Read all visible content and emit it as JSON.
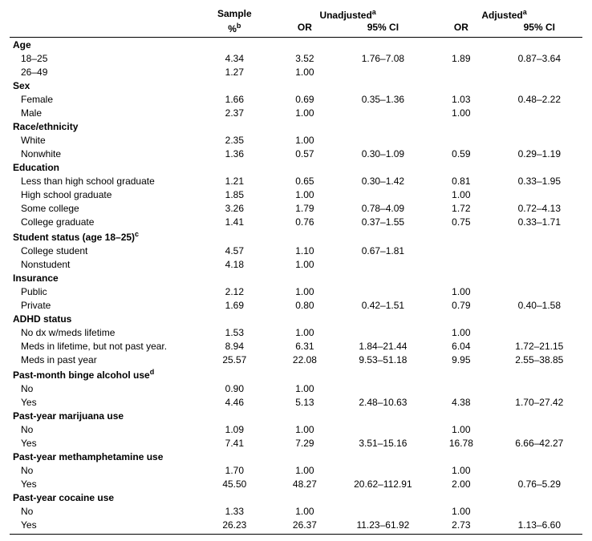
{
  "headers": {
    "sample": "Sample",
    "unadj": "Unadjusted",
    "adj": "Adjusted",
    "sup_a": "a",
    "pct": "%",
    "sup_b": "b",
    "or": "OR",
    "ci": "95% CI"
  },
  "sections": [
    {
      "label": "Age",
      "rows": [
        {
          "label": "18–25",
          "pct": "4.34",
          "uor": "3.52",
          "uci": "1.76–7.08",
          "aor": "1.89",
          "aci": "0.87–3.64"
        },
        {
          "label": "26–49",
          "pct": "1.27",
          "uor": "1.00",
          "uci": "",
          "aor": "",
          "aci": ""
        }
      ]
    },
    {
      "label": "Sex",
      "rows": [
        {
          "label": "Female",
          "pct": "1.66",
          "uor": "0.69",
          "uci": "0.35–1.36",
          "aor": "1.03",
          "aci": "0.48–2.22"
        },
        {
          "label": "Male",
          "pct": "2.37",
          "uor": "1.00",
          "uci": "",
          "aor": "1.00",
          "aci": ""
        }
      ]
    },
    {
      "label": "Race/ethnicity",
      "rows": [
        {
          "label": "White",
          "pct": "2.35",
          "uor": "1.00",
          "uci": "",
          "aor": "",
          "aci": ""
        },
        {
          "label": "Nonwhite",
          "pct": "1.36",
          "uor": "0.57",
          "uci": "0.30–1.09",
          "aor": "0.59",
          "aci": "0.29–1.19"
        }
      ]
    },
    {
      "label": "Education",
      "rows": [
        {
          "label": "Less than high school graduate",
          "pct": "1.21",
          "uor": "0.65",
          "uci": "0.30–1.42",
          "aor": "0.81",
          "aci": "0.33–1.95"
        },
        {
          "label": "High school graduate",
          "pct": "1.85",
          "uor": "1.00",
          "uci": "",
          "aor": "1.00",
          "aci": ""
        },
        {
          "label": "Some college",
          "pct": "3.26",
          "uor": "1.79",
          "uci": "0.78–4.09",
          "aor": "1.72",
          "aci": "0.72–4.13"
        },
        {
          "label": "College graduate",
          "pct": "1.41",
          "uor": "0.76",
          "uci": "0.37–1.55",
          "aor": "0.75",
          "aci": "0.33–1.71"
        }
      ]
    },
    {
      "label": "Student status (age 18–25)",
      "sup": "c",
      "rows": [
        {
          "label": "College student",
          "pct": "4.57",
          "uor": "1.10",
          "uci": "0.67–1.81",
          "aor": "",
          "aci": ""
        },
        {
          "label": "Nonstudent",
          "pct": "4.18",
          "uor": "1.00",
          "uci": "",
          "aor": "",
          "aci": ""
        }
      ]
    },
    {
      "label": "Insurance",
      "rows": [
        {
          "label": "Public",
          "pct": "2.12",
          "uor": "1.00",
          "uci": "",
          "aor": "1.00",
          "aci": ""
        },
        {
          "label": "Private",
          "pct": "1.69",
          "uor": "0.80",
          "uci": "0.42–1.51",
          "aor": "0.79",
          "aci": "0.40–1.58"
        }
      ]
    },
    {
      "label": "ADHD status",
      "rows": [
        {
          "label": "No dx w/meds lifetime",
          "pct": "1.53",
          "uor": "1.00",
          "uci": "",
          "aor": "1.00",
          "aci": ""
        },
        {
          "label": "Meds in lifetime, but not past year.",
          "pct": "8.94",
          "uor": "6.31",
          "uci": "1.84–21.44",
          "aor": "6.04",
          "aci": "1.72–21.15"
        },
        {
          "label": "Meds in past year",
          "pct": "25.57",
          "uor": "22.08",
          "uci": "9.53–51.18",
          "aor": "9.95",
          "aci": "2.55–38.85"
        }
      ]
    },
    {
      "label": "Past-month binge alcohol use",
      "sup": "d",
      "rows": [
        {
          "label": "No",
          "pct": "0.90",
          "uor": "1.00",
          "uci": "",
          "aor": "",
          "aci": ""
        },
        {
          "label": "Yes",
          "pct": "4.46",
          "uor": "5.13",
          "uci": "2.48–10.63",
          "aor": "4.38",
          "aci": "1.70–27.42"
        }
      ]
    },
    {
      "label": "Past-year marijuana use",
      "rows": [
        {
          "label": "No",
          "pct": "1.09",
          "uor": "1.00",
          "uci": "",
          "aor": "1.00",
          "aci": ""
        },
        {
          "label": "Yes",
          "pct": "7.41",
          "uor": "7.29",
          "uci": "3.51–15.16",
          "aor": "16.78",
          "aci": "6.66–42.27"
        }
      ]
    },
    {
      "label": "Past-year methamphetamine use",
      "rows": [
        {
          "label": "No",
          "pct": "1.70",
          "uor": "1.00",
          "uci": "",
          "aor": "1.00",
          "aci": ""
        },
        {
          "label": "Yes",
          "pct": "45.50",
          "uor": "48.27",
          "uci": "20.62–112.91",
          "aor": "2.00",
          "aci": "0.76–5.29"
        }
      ]
    },
    {
      "label": "Past-year cocaine use",
      "rows": [
        {
          "label": "No",
          "pct": "1.33",
          "uor": "1.00",
          "uci": "",
          "aor": "1.00",
          "aci": ""
        },
        {
          "label": "Yes",
          "pct": "26.23",
          "uor": "26.37",
          "uci": "11.23–61.92",
          "aor": "2.73",
          "aci": "1.13–6.60"
        }
      ]
    }
  ]
}
